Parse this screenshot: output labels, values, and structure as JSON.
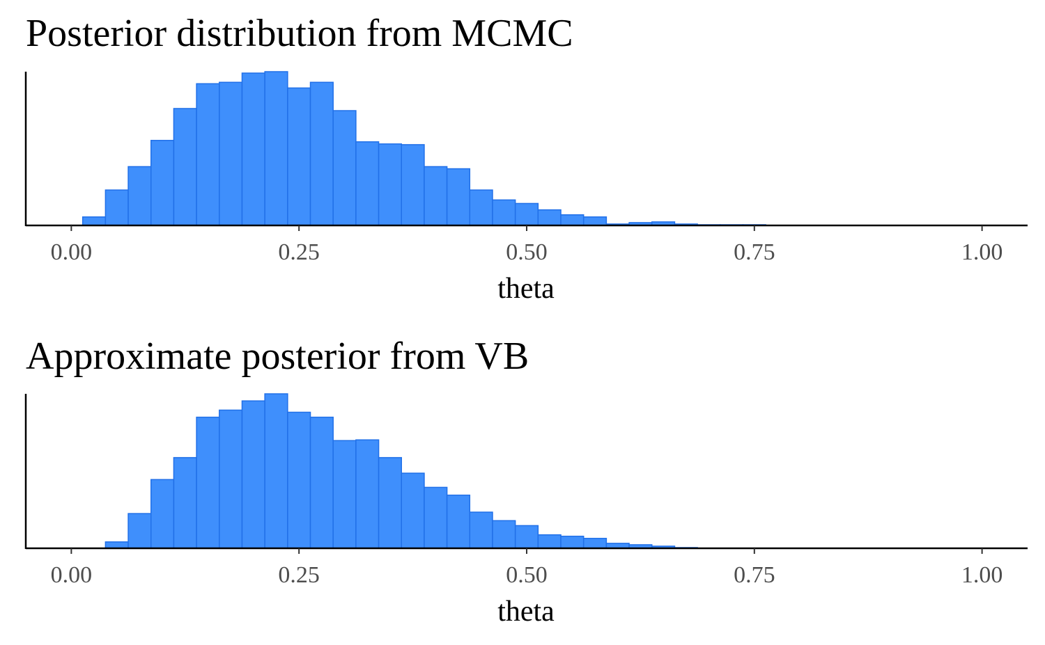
{
  "chart_data": [
    {
      "type": "bar",
      "title": "Posterior distribution from MCMC",
      "xlabel": "theta",
      "ylabel": "",
      "xlim": [
        -0.05,
        1.05
      ],
      "x_ticks": [
        0,
        0.25,
        0.5,
        0.75,
        1
      ],
      "x_tick_labels": [
        "0.00",
        "0.25",
        "0.50",
        "0.75",
        "1.00"
      ],
      "bin_width": 0.025,
      "bin_start": 0.0125,
      "values": [
        12,
        50,
        83,
        120,
        165,
        200,
        202,
        215,
        217,
        194,
        202,
        162,
        118,
        115,
        114,
        83,
        80,
        50,
        36,
        31,
        22,
        15,
        12,
        2,
        4,
        5,
        2,
        1,
        1,
        1,
        0,
        0,
        0,
        0,
        0,
        0,
        0,
        0,
        0
      ],
      "ylim": [
        0,
        217
      ],
      "fill_color": "#3f8ffc",
      "stroke_color": "#2170e8",
      "grid": false,
      "legend": "none"
    },
    {
      "type": "bar",
      "title": "Approximate posterior from VB",
      "xlabel": "theta",
      "ylabel": "",
      "xlim": [
        -0.05,
        1.05
      ],
      "x_ticks": [
        0,
        0.25,
        0.5,
        0.75,
        1
      ],
      "x_tick_labels": [
        "0.00",
        "0.25",
        "0.50",
        "0.75",
        "1.00"
      ],
      "bin_width": 0.025,
      "bin_start": 0.0125,
      "values": [
        0,
        9,
        49,
        97,
        128,
        185,
        195,
        208,
        218,
        192,
        185,
        152,
        153,
        128,
        106,
        86,
        75,
        51,
        39,
        32,
        19,
        17,
        14,
        7,
        5,
        3,
        1,
        0,
        0,
        0,
        0,
        0,
        0,
        0,
        0,
        0,
        0,
        0,
        0
      ],
      "ylim": [
        0,
        218
      ],
      "fill_color": "#3f8ffc",
      "stroke_color": "#2170e8",
      "grid": false,
      "legend": "none"
    }
  ]
}
